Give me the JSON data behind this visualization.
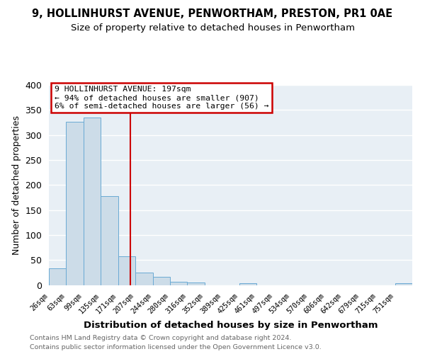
{
  "title_line1": "9, HOLLINHURST AVENUE, PENWORTHAM, PRESTON, PR1 0AE",
  "title_line2": "Size of property relative to detached houses in Penwortham",
  "xlabel": "Distribution of detached houses by size in Penwortham",
  "ylabel": "Number of detached properties",
  "bin_labels": [
    "26sqm",
    "63sqm",
    "99sqm",
    "135sqm",
    "171sqm",
    "207sqm",
    "244sqm",
    "280sqm",
    "316sqm",
    "352sqm",
    "389sqm",
    "425sqm",
    "461sqm",
    "497sqm",
    "534sqm",
    "570sqm",
    "606sqm",
    "642sqm",
    "679sqm",
    "715sqm",
    "751sqm"
  ],
  "bin_counts": [
    33,
    327,
    335,
    178,
    57,
    25,
    16,
    6,
    5,
    0,
    0,
    4,
    0,
    0,
    0,
    0,
    0,
    0,
    0,
    0,
    4
  ],
  "bar_color": "#ccdce8",
  "bar_edge_color": "#6aaad4",
  "vline_color": "#cc0000",
  "annotation_title": "9 HOLLINHURST AVENUE: 197sqm",
  "annotation_line1": "← 94% of detached houses are smaller (907)",
  "annotation_line2": "6% of semi-detached houses are larger (56) →",
  "annotation_box_color": "#ffffff",
  "annotation_box_edge": "#cc0000",
  "footer_line1": "Contains HM Land Registry data © Crown copyright and database right 2024.",
  "footer_line2": "Contains public sector information licensed under the Open Government Licence v3.0.",
  "ylim": [
    0,
    400
  ],
  "yticks": [
    0,
    50,
    100,
    150,
    200,
    250,
    300,
    350,
    400
  ],
  "background_color": "#ffffff",
  "plot_bg_color": "#e8eff5",
  "title_fontsize": 10.5,
  "subtitle_fontsize": 9.5
}
